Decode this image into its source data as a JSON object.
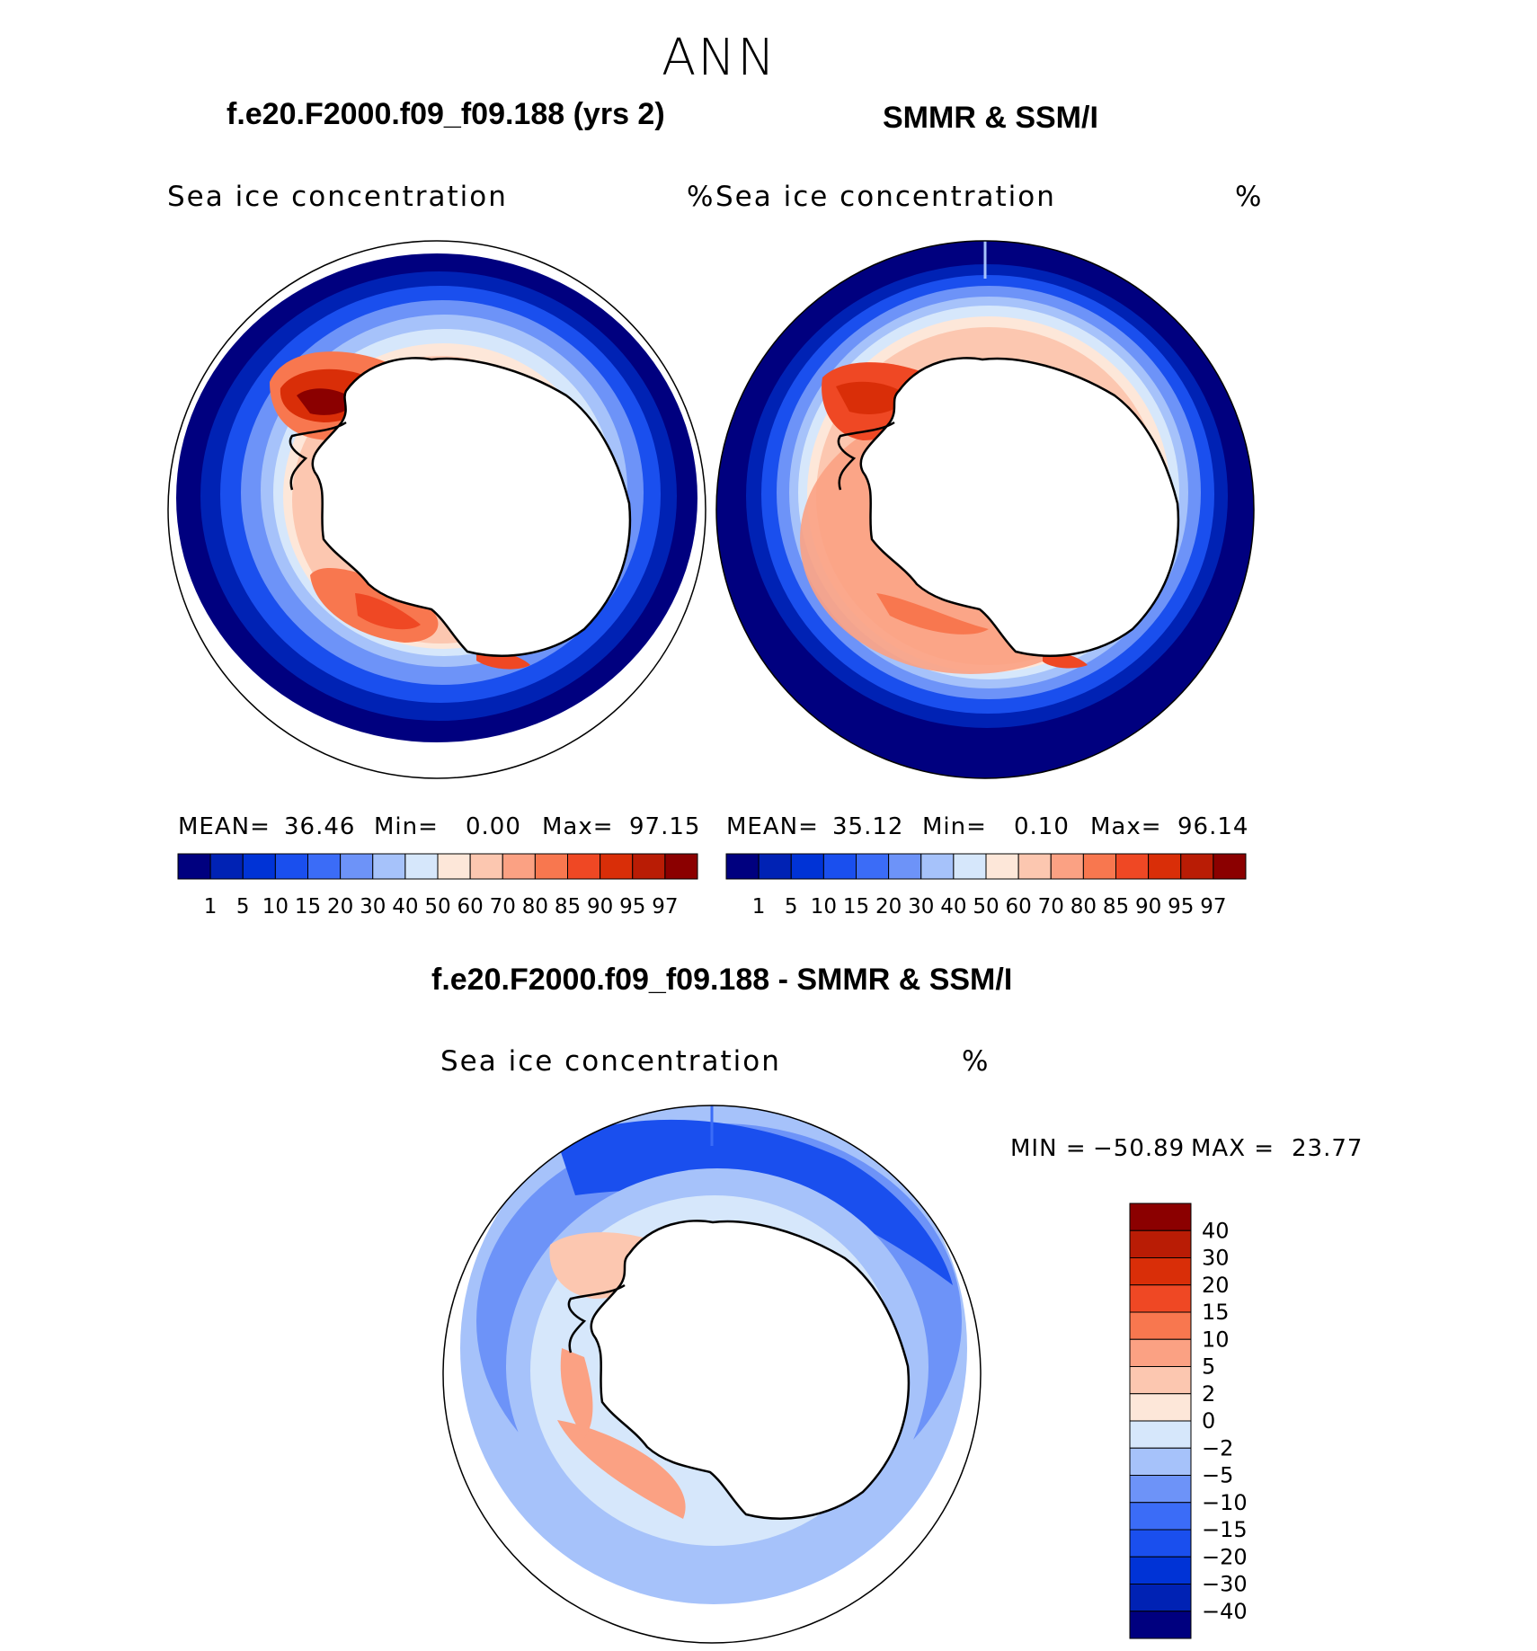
{
  "season": "ANN",
  "panels": [
    {
      "title": "f.e20.F2000.f09_f09.188 (yrs 2)",
      "field_label": "Sea ice concentration",
      "units": "%",
      "stats": {
        "mean_label": "MEAN=",
        "mean": "36.46",
        "min_label": "Min=",
        "min": "0.00",
        "max_label": "Max=",
        "max": "97.15"
      }
    },
    {
      "title": "SMMR & SSM/I",
      "field_label": "Sea ice concentration",
      "units": "%",
      "stats": {
        "mean_label": "MEAN=",
        "mean": "35.12",
        "min_label": "Min=",
        "min": "0.10",
        "max_label": "Max=",
        "max": "96.14"
      }
    }
  ],
  "abs_colorbar": {
    "labels": [
      "1",
      "5",
      "10",
      "15",
      "20",
      "30",
      "40",
      "50",
      "60",
      "70",
      "80",
      "85",
      "90",
      "95",
      "97"
    ],
    "colors": [
      "#00007f",
      "#0022b4",
      "#0033d6",
      "#1a4fee",
      "#3b6cf7",
      "#6d93f8",
      "#a6c2fa",
      "#d6e7fb",
      "#fde7d9",
      "#fcc7b0",
      "#fba183",
      "#f8774f",
      "#ef4824",
      "#d92e08",
      "#b91c05",
      "#8b0000"
    ]
  },
  "diff_panel": {
    "title": "f.e20.F2000.f09_f09.188 - SMMR & SSM/I",
    "field_label": "Sea ice concentration",
    "units": "%",
    "minmax": {
      "min_label": "MIN =",
      "min": "−50.89",
      "max_label": "MAX =",
      "max": "23.77"
    }
  },
  "diff_colorbar": {
    "labels": [
      "40",
      "30",
      "20",
      "15",
      "10",
      "5",
      "2",
      "0",
      "−2",
      "−5",
      "−10",
      "−15",
      "−20",
      "−30",
      "−40"
    ],
    "colors": [
      "#8b0000",
      "#b91c05",
      "#d92e08",
      "#ef4824",
      "#f8774f",
      "#fba183",
      "#fcc7b0",
      "#fde7d9",
      "#d6e7fb",
      "#a6c2fa",
      "#6d93f8",
      "#3b6cf7",
      "#1a4fee",
      "#0033d6",
      "#0022b4",
      "#00007f"
    ]
  },
  "colors": {
    "land": "#ffffff",
    "coast": "#000000",
    "deep_blue": "#00007f",
    "mid_blue": "#3b6cf7",
    "light_blue": "#d6e7fb",
    "pale_red": "#fcc7b0",
    "red": "#ef4824",
    "dark_red": "#b91c05"
  }
}
